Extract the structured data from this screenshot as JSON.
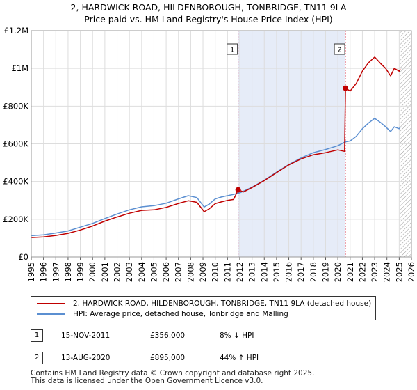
{
  "title_lines": [
    "2, HARDWICK ROAD, HILDENBOROUGH, TONBRIDGE, TN11 9LA",
    "Price paid vs. HM Land Registry's House Price Index (HPI)"
  ],
  "colors": {
    "property": "#c00000",
    "hpi": "#5b8fd1",
    "grid": "#dddddd",
    "shade": "#e6ecf8",
    "marker_line": "#e06070"
  },
  "chart_data": {
    "type": "line",
    "xlim": [
      1995,
      2026
    ],
    "ylim": [
      0,
      1200000
    ],
    "y_ticks": [
      0,
      200000,
      400000,
      600000,
      800000,
      1000000,
      1200000
    ],
    "y_tick_labels": [
      "£0",
      "£200K",
      "£400K",
      "£600K",
      "£800K",
      "£1M",
      "£1.2M"
    ],
    "x_ticks": [
      1995,
      1996,
      1997,
      1998,
      1999,
      2000,
      2001,
      2002,
      2003,
      2004,
      2005,
      2006,
      2007,
      2008,
      2009,
      2010,
      2011,
      2012,
      2013,
      2014,
      2015,
      2016,
      2017,
      2018,
      2019,
      2020,
      2021,
      2022,
      2023,
      2024,
      2025,
      2026
    ],
    "shaded_range": [
      2011.87,
      2020.62
    ],
    "hatched_after": 2025.1,
    "series": [
      {
        "name": "2, HARDWICK ROAD, HILDENBOROUGH, TONBRIDGE, TN11 9LA (detached house)",
        "color": "#c00000",
        "x": [
          1995,
          1996,
          1997,
          1998,
          1999,
          2000,
          2001,
          2002,
          2003,
          2004,
          2005,
          2006,
          2007,
          2007.8,
          2008.5,
          2009.1,
          2009.5,
          2010,
          2010.5,
          2011,
          2011.5,
          2011.87,
          2012.3,
          2013,
          2014,
          2015,
          2016,
          2017,
          2018,
          2019,
          2020,
          2020.55,
          2020.62,
          2021,
          2021.5,
          2022,
          2022.5,
          2023,
          2023.5,
          2023.9,
          2024.3,
          2024.6,
          2025,
          2025.1
        ],
        "y": [
          103000,
          106000,
          114000,
          125000,
          143000,
          164000,
          190000,
          212000,
          232000,
          247000,
          250000,
          263000,
          284000,
          298000,
          290000,
          240000,
          255000,
          283000,
          292000,
          300000,
          305000,
          356000,
          345000,
          368000,
          405000,
          447000,
          488000,
          520000,
          542000,
          553000,
          568000,
          560000,
          895000,
          880000,
          920000,
          985000,
          1030000,
          1060000,
          1025000,
          1000000,
          960000,
          1000000,
          985000,
          995000
        ]
      },
      {
        "name": "HPI: Average price, detached house, Tonbridge and Malling",
        "color": "#5b8fd1",
        "x": [
          1995,
          1996,
          1997,
          1998,
          1999,
          2000,
          2001,
          2002,
          2003,
          2004,
          2005,
          2006,
          2007,
          2007.8,
          2008.5,
          2009.1,
          2009.5,
          2010,
          2010.5,
          2011,
          2011.5,
          2012,
          2013,
          2014,
          2015,
          2016,
          2017,
          2018,
          2019,
          2020,
          2020.6,
          2021,
          2021.5,
          2022,
          2022.5,
          2023,
          2023.5,
          2023.9,
          2024.3,
          2024.6,
          2025,
          2025.1
        ],
        "y": [
          113000,
          117000,
          127000,
          138000,
          158000,
          178000,
          204000,
          228000,
          250000,
          266000,
          272000,
          285000,
          308000,
          325000,
          315000,
          265000,
          280000,
          308000,
          318000,
          325000,
          332000,
          340000,
          370000,
          407000,
          450000,
          490000,
          525000,
          553000,
          570000,
          590000,
          610000,
          615000,
          640000,
          680000,
          710000,
          735000,
          712000,
          690000,
          665000,
          690000,
          680000,
          690000
        ]
      }
    ],
    "sales": [
      {
        "label": "1",
        "x": 2011.87,
        "y": 356000
      },
      {
        "label": "2",
        "x": 2020.62,
        "y": 895000
      }
    ]
  },
  "legend": {
    "property_label": "2, HARDWICK ROAD, HILDENBOROUGH, TONBRIDGE, TN11 9LA (detached house)",
    "hpi_label": "HPI: Average price, detached house, Tonbridge and Malling"
  },
  "sales_table": [
    {
      "num": "1",
      "date": "15-NOV-2011",
      "price": "£356,000",
      "hpi": "8% ↓ HPI"
    },
    {
      "num": "2",
      "date": "13-AUG-2020",
      "price": "£895,000",
      "hpi": "44% ↑ HPI"
    }
  ],
  "footer_lines": [
    "Contains HM Land Registry data © Crown copyright and database right 2025.",
    "This data is licensed under the Open Government Licence v3.0."
  ]
}
